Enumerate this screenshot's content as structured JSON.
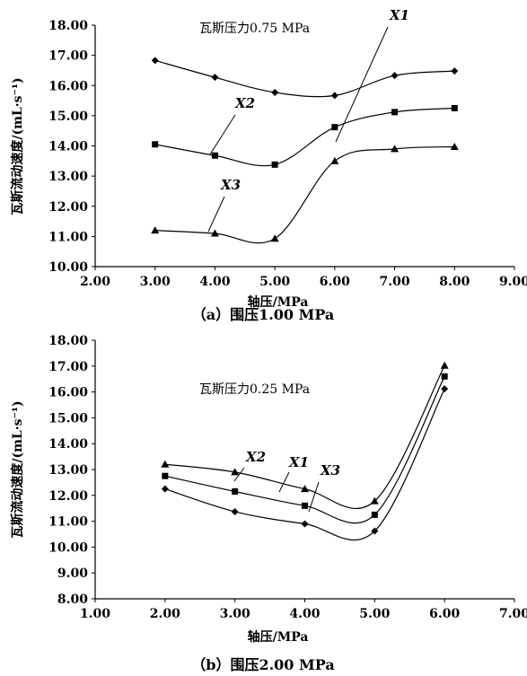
{
  "chart_data": [
    {
      "type": "line",
      "caption": "（a）围压1.00 MPa",
      "annotation": "瓦斯压力0.75 MPa",
      "xlabel": "轴压/MPa",
      "ylabel": "瓦斯流动速度/(mL·s⁻¹)",
      "xlim": [
        2.0,
        9.0
      ],
      "ylim": [
        10.0,
        18.0
      ],
      "xticks": [
        "2.00",
        "3.00",
        "4.00",
        "5.00",
        "6.00",
        "7.00",
        "8.00",
        "9.00"
      ],
      "yticks": [
        "10.00",
        "11.00",
        "12.00",
        "13.00",
        "14.00",
        "15.00",
        "16.00",
        "17.00",
        "18.00"
      ],
      "x": [
        3,
        4,
        5,
        6,
        7,
        8
      ],
      "series": [
        {
          "name": "X1",
          "marker": "diamond",
          "values": [
            16.83,
            16.27,
            15.77,
            15.67,
            16.33,
            16.48
          ]
        },
        {
          "name": "X2",
          "marker": "square",
          "values": [
            14.05,
            13.68,
            13.38,
            14.62,
            15.12,
            15.25
          ]
        },
        {
          "name": "X3",
          "marker": "triangle",
          "values": [
            11.2,
            11.1,
            10.93,
            13.5,
            13.9,
            13.97
          ]
        }
      ],
      "grid": false,
      "legend": "callout labels"
    },
    {
      "type": "line",
      "caption": "（b）围压2.00 MPa",
      "annotation": "瓦斯压力0.25 MPa",
      "xlabel": "轴压/MPa",
      "ylabel": "瓦斯流动速度/(mL·s⁻¹)",
      "xlim": [
        1.0,
        7.0
      ],
      "ylim": [
        8.0,
        18.0
      ],
      "xticks": [
        "1.00",
        "2.00",
        "3.00",
        "4.00",
        "5.00",
        "6.00",
        "7.00"
      ],
      "yticks": [
        "8.00",
        "9.00",
        "10.00",
        "11.00",
        "12.00",
        "13.00",
        "14.00",
        "15.00",
        "16.00",
        "17.00",
        "18.00"
      ],
      "x": [
        2,
        3,
        4,
        5,
        6
      ],
      "series": [
        {
          "name": "X1",
          "marker": "triangle",
          "values": [
            13.2,
            12.9,
            12.25,
            11.78,
            17.02
          ]
        },
        {
          "name": "X2",
          "marker": "square",
          "values": [
            12.75,
            12.15,
            11.6,
            11.25,
            16.6
          ]
        },
        {
          "name": "X3",
          "marker": "diamond",
          "values": [
            12.25,
            11.37,
            10.9,
            10.62,
            16.12
          ]
        }
      ],
      "grid": false,
      "legend": "callout labels"
    }
  ]
}
